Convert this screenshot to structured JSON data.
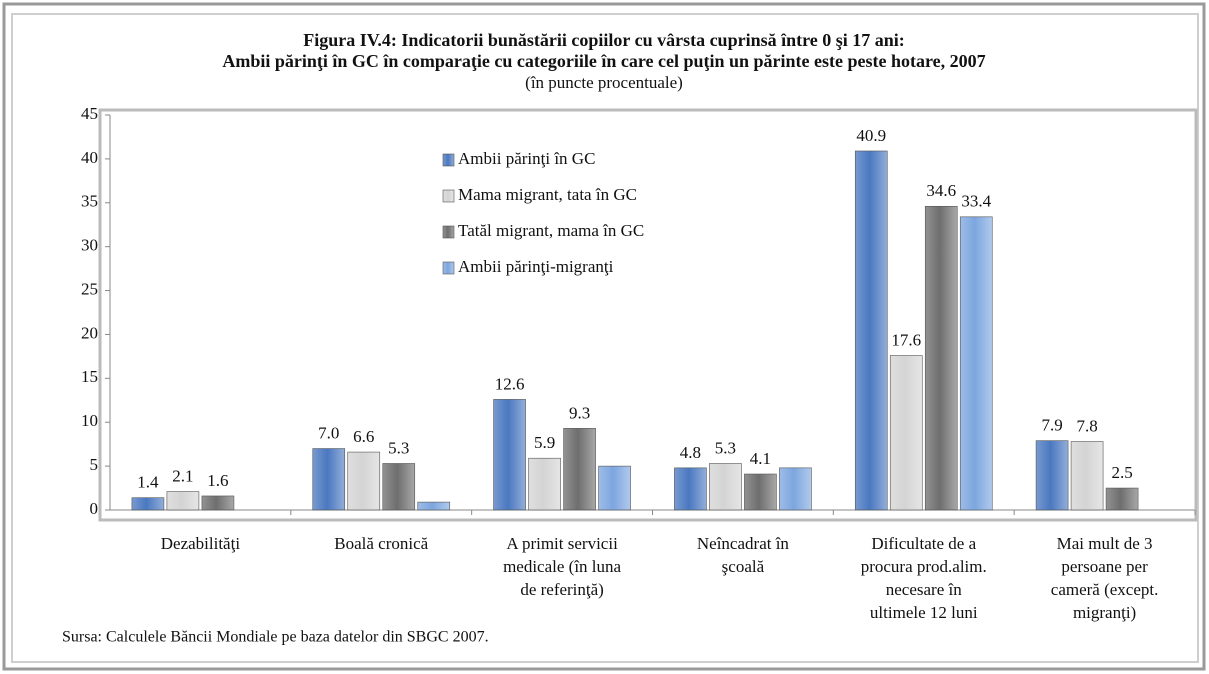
{
  "chart_data": {
    "type": "bar",
    "title": "Figura IV.4: Indicatorii bunăstării copiilor cu vârsta cuprinsă între 0 şi 17 ani:",
    "title2": "Ambii părinţi în GC în comparaţie cu categoriile în care cel puţin un părinte este peste hotare,  2007",
    "subtitle": "(în puncte procentuale)",
    "source": "Sursa: Calculele Băncii Mondiale pe baza datelor din SBGC 2007.",
    "categories": [
      "Dezabilităţi",
      "Boală cronică",
      "A primit servicii\nmedicale (în luna\nde referinţă)",
      "Neîncadrat în\nşcoală",
      "Dificultate de a\nprocura prod.alim.\nnecesare în\nultimele 12 luni",
      "Mai mult de 3\npersoane per\ncameră (except.\nmigranţi)"
    ],
    "series": [
      {
        "name": "Ambii părinţi în GC",
        "color": "#4a78c0",
        "values": [
          1.4,
          7.0,
          12.6,
          4.8,
          40.9,
          7.9
        ],
        "value_labels": [
          "1.4",
          "7.0",
          "12.6",
          "4.8",
          "40.9",
          "7.9"
        ]
      },
      {
        "name": "Mama migrant, tata în GC",
        "color": "#d4d4d4",
        "values": [
          2.1,
          6.6,
          5.9,
          5.3,
          17.6,
          7.8
        ],
        "value_labels": [
          "2.1",
          "6.6",
          "5.9",
          "5.3",
          "17.6",
          "7.8"
        ]
      },
      {
        "name": "Tatăl migrant, mama în GC",
        "color": "#6e6e6e",
        "values": [
          1.6,
          5.3,
          9.3,
          4.1,
          34.6,
          2.5
        ],
        "value_labels": [
          "1.6",
          "5.3",
          "9.3",
          "4.1",
          "34.6",
          "2.5"
        ]
      },
      {
        "name": "Ambii părinţi-migranţi",
        "color": "#7da6df",
        "values": [
          null,
          0.9,
          5.0,
          4.8,
          33.4,
          null
        ],
        "value_labels": [
          null,
          null,
          null,
          null,
          "33.4",
          null
        ]
      }
    ],
    "ylim": [
      0,
      45
    ],
    "yticks": [
      0,
      5,
      10,
      15,
      20,
      25,
      30,
      35,
      40,
      45
    ]
  }
}
